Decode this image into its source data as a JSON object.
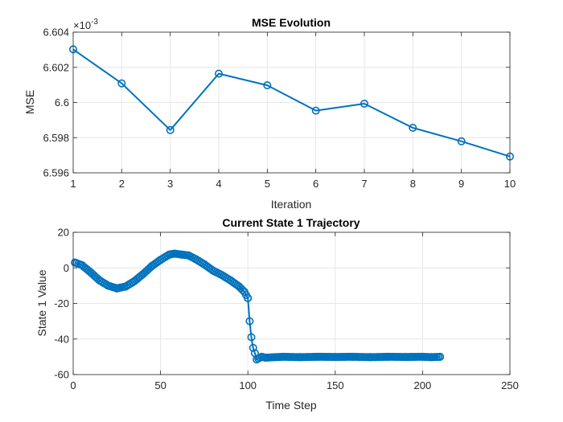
{
  "chart_data": [
    {
      "type": "line",
      "title": "MSE Evolution",
      "xlabel": "Iteration",
      "ylabel": "MSE",
      "xlim": [
        1,
        10
      ],
      "ylim": [
        6.596,
        6.604
      ],
      "xticks": [
        "1",
        "2",
        "3",
        "4",
        "5",
        "6",
        "7",
        "8",
        "9",
        "10"
      ],
      "yticks": [
        "6.596",
        "6.598",
        "6.6",
        "6.602",
        "6.604"
      ],
      "y_exponent_base": "×10",
      "y_exponent_power": "-3",
      "grid": true,
      "marker": "circle",
      "color": "#0072BD",
      "x": [
        1,
        2,
        3,
        4,
        5,
        6,
        7,
        8,
        9,
        10
      ],
      "values": [
        6.60302,
        6.60109,
        6.59843,
        6.60164,
        6.60098,
        6.59954,
        6.59993,
        6.59856,
        6.59779,
        6.59693
      ]
    },
    {
      "type": "line",
      "title": "Current State 1 Trajectory",
      "xlabel": "Time Step",
      "ylabel": "State 1 Value",
      "xlim": [
        0,
        250
      ],
      "ylim": [
        -60,
        20
      ],
      "xticks": [
        "0",
        "50",
        "100",
        "150",
        "200",
        "250"
      ],
      "yticks": [
        "-60",
        "-40",
        "-20",
        "0",
        "20"
      ],
      "grid": true,
      "marker": "circle",
      "color": "#0072BD",
      "x": [
        1,
        5,
        10,
        15,
        20,
        25,
        30,
        35,
        40,
        45,
        50,
        55,
        58,
        62,
        66,
        70,
        75,
        80,
        85,
        90,
        95,
        98,
        100,
        101,
        102,
        103,
        104,
        105,
        106,
        108,
        110,
        120,
        130,
        140,
        150,
        160,
        170,
        180,
        190,
        200,
        205,
        210
      ],
      "values": [
        3,
        1.5,
        -2.5,
        -7,
        -10,
        -11.5,
        -10.5,
        -7.5,
        -3.5,
        1,
        4.5,
        7.5,
        8,
        7.5,
        7,
        5,
        2,
        -1.5,
        -4,
        -7,
        -10.5,
        -13.5,
        -17,
        -30,
        -39,
        -45,
        -48,
        -51.5,
        -51,
        -50,
        -50.5,
        -50,
        -50.2,
        -50,
        -50.1,
        -50,
        -50.2,
        -50,
        -50.1,
        -50,
        -50.2,
        -50
      ]
    }
  ]
}
